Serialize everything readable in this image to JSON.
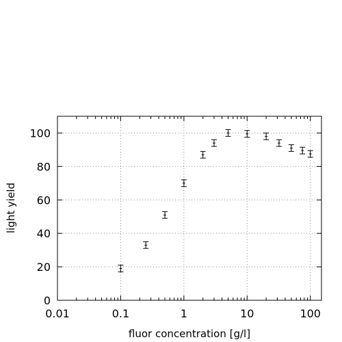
{
  "chart_data": {
    "type": "scatter",
    "title": "",
    "xlabel": "fluor concentration [g/l]",
    "ylabel": "light yield",
    "xscale": "log",
    "xlim": [
      0.01,
      150
    ],
    "ylim": [
      0,
      110
    ],
    "grid": true,
    "x_ticks": [
      0.01,
      0.1,
      1,
      10,
      100
    ],
    "x_tick_labels": [
      "0.01",
      "0.1",
      "1",
      "10",
      "100"
    ],
    "y_ticks": [
      0,
      20,
      40,
      60,
      80,
      100
    ],
    "y_tick_labels": [
      "0",
      "20",
      "40",
      "60",
      "80",
      "100"
    ],
    "points": [
      {
        "x": 0.1,
        "y": 19,
        "err": 2
      },
      {
        "x": 0.25,
        "y": 33,
        "err": 2
      },
      {
        "x": 0.5,
        "y": 51,
        "err": 2
      },
      {
        "x": 1,
        "y": 70,
        "err": 2
      },
      {
        "x": 2,
        "y": 87,
        "err": 2
      },
      {
        "x": 3,
        "y": 94,
        "err": 2
      },
      {
        "x": 5,
        "y": 100,
        "err": 2
      },
      {
        "x": 10,
        "y": 99.5,
        "err": 2
      },
      {
        "x": 20,
        "y": 98,
        "err": 2
      },
      {
        "x": 32,
        "y": 94,
        "err": 2
      },
      {
        "x": 50,
        "y": 91,
        "err": 2
      },
      {
        "x": 75,
        "y": 89.5,
        "err": 2
      },
      {
        "x": 100,
        "y": 87.5,
        "err": 2
      }
    ]
  }
}
